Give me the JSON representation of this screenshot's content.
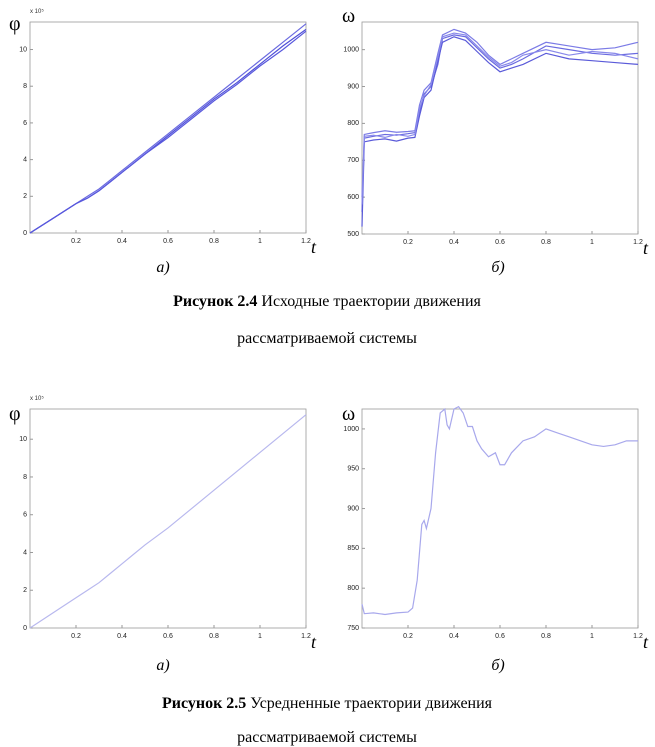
{
  "chart_data": [
    {
      "type": "line",
      "y_label": "φ",
      "y_exponent": "x 10⁵",
      "x_label": "t",
      "sublabel": "а)",
      "xlim": [
        0,
        1.2
      ],
      "xticks": [
        0.2,
        0.4,
        0.6,
        0.8,
        1,
        1.2
      ],
      "ylim": [
        0,
        11.5
      ],
      "yticks": [
        0,
        2,
        4,
        6,
        8,
        10
      ],
      "x": [
        0,
        0.1,
        0.2,
        0.25,
        0.3,
        0.35,
        0.4,
        0.5,
        0.6,
        0.7,
        0.8,
        0.9,
        1.0,
        1.1,
        1.2
      ],
      "series": [
        {
          "color": "#6a6ae0",
          "values": [
            0,
            0.8,
            1.6,
            2.0,
            2.4,
            2.9,
            3.4,
            4.4,
            5.4,
            6.4,
            7.4,
            8.4,
            9.4,
            10.4,
            11.4
          ]
        },
        {
          "color": "#4f4fd8",
          "values": [
            0,
            0.8,
            1.6,
            1.9,
            2.3,
            2.8,
            3.3,
            4.3,
            5.3,
            6.3,
            7.3,
            8.2,
            9.2,
            10.2,
            11.1
          ]
        },
        {
          "color": "#5858dd",
          "values": [
            0,
            0.8,
            1.6,
            1.9,
            2.3,
            2.8,
            3.3,
            4.3,
            5.2,
            6.2,
            7.2,
            8.1,
            9.1,
            10.0,
            11.0
          ]
        }
      ]
    },
    {
      "type": "line",
      "y_label": "ω",
      "x_label": "t",
      "sublabel": "б)",
      "xlim": [
        0,
        1.2
      ],
      "xticks": [
        0.2,
        0.4,
        0.6,
        0.8,
        1,
        1.2
      ],
      "ylim": [
        500,
        1075
      ],
      "yticks": [
        500,
        600,
        700,
        800,
        900,
        1000
      ],
      "x": [
        0,
        0.01,
        0.05,
        0.1,
        0.15,
        0.2,
        0.23,
        0.25,
        0.27,
        0.3,
        0.33,
        0.35,
        0.4,
        0.45,
        0.5,
        0.55,
        0.6,
        0.65,
        0.7,
        0.8,
        0.9,
        1.0,
        1.1,
        1.2
      ],
      "series": [
        {
          "color": "#6a6ae0",
          "values": [
            560,
            760,
            765,
            770,
            768,
            772,
            775,
            830,
            880,
            900,
            960,
            1030,
            1040,
            1035,
            1005,
            975,
            950,
            960,
            975,
            1010,
            1000,
            990,
            985,
            990
          ]
        },
        {
          "color": "#7b7be6",
          "values": [
            600,
            770,
            775,
            780,
            776,
            778,
            780,
            850,
            890,
            910,
            990,
            1040,
            1055,
            1045,
            1020,
            985,
            960,
            975,
            990,
            1020,
            1010,
            1000,
            1005,
            1020
          ]
        },
        {
          "color": "#5a5ad9",
          "values": [
            520,
            750,
            755,
            758,
            752,
            760,
            762,
            820,
            870,
            890,
            970,
            1020,
            1035,
            1025,
            995,
            965,
            940,
            950,
            960,
            990,
            975,
            970,
            965,
            960
          ]
        },
        {
          "color": "#8888ea",
          "values": [
            580,
            765,
            768,
            762,
            770,
            765,
            770,
            840,
            875,
            905,
            980,
            1035,
            1045,
            1040,
            1010,
            980,
            955,
            965,
            985,
            1000,
            985,
            995,
            990,
            975
          ]
        }
      ]
    },
    {
      "type": "line",
      "y_label": "φ",
      "y_exponent": "x 10⁵",
      "x_label": "t",
      "sublabel": "а)",
      "xlim": [
        0,
        1.2
      ],
      "xticks": [
        0.2,
        0.4,
        0.6,
        0.8,
        1,
        1.2
      ],
      "ylim": [
        0,
        11.6
      ],
      "yticks": [
        0,
        2,
        4,
        6,
        8,
        10
      ],
      "x": [
        0,
        0.1,
        0.2,
        0.25,
        0.3,
        0.35,
        0.4,
        0.5,
        0.6,
        0.7,
        0.8,
        0.9,
        1.0,
        1.1,
        1.2
      ],
      "series": [
        {
          "color": "#b8b8ee",
          "values": [
            0,
            0.8,
            1.6,
            2.0,
            2.4,
            2.9,
            3.4,
            4.4,
            5.3,
            6.3,
            7.3,
            8.3,
            9.3,
            10.3,
            11.3
          ]
        }
      ]
    },
    {
      "type": "line",
      "y_label": "ω",
      "x_label": "t",
      "sublabel": "б)",
      "xlim": [
        0,
        1.2
      ],
      "xticks": [
        0.2,
        0.4,
        0.6,
        0.8,
        1,
        1.2
      ],
      "ylim": [
        750,
        1025
      ],
      "yticks": [
        750,
        800,
        850,
        900,
        950,
        1000
      ],
      "x": [
        0,
        0.01,
        0.05,
        0.1,
        0.15,
        0.2,
        0.22,
        0.24,
        0.26,
        0.27,
        0.28,
        0.3,
        0.32,
        0.34,
        0.36,
        0.37,
        0.38,
        0.4,
        0.42,
        0.44,
        0.46,
        0.48,
        0.5,
        0.52,
        0.55,
        0.58,
        0.6,
        0.62,
        0.65,
        0.7,
        0.75,
        0.8,
        0.85,
        0.9,
        0.95,
        1.0,
        1.05,
        1.1,
        1.15,
        1.2
      ],
      "series": [
        {
          "color": "#a8a8ec",
          "values": [
            780,
            768,
            769,
            767,
            769,
            770,
            775,
            810,
            880,
            885,
            875,
            900,
            970,
            1020,
            1025,
            1005,
            1000,
            1025,
            1028,
            1020,
            1003,
            1003,
            985,
            975,
            965,
            970,
            955,
            955,
            970,
            985,
            990,
            1000,
            995,
            990,
            985,
            980,
            978,
            980,
            985,
            985
          ]
        }
      ]
    }
  ],
  "figures": [
    {
      "label": "Рисунок 2.4",
      "caption": "Исходные траектории движения",
      "caption_line2": "рассматриваемой системы"
    },
    {
      "label": "Рисунок 2.5",
      "caption": "Усредненные траектории движения",
      "caption_line2": "рассматриваемой системы"
    }
  ]
}
